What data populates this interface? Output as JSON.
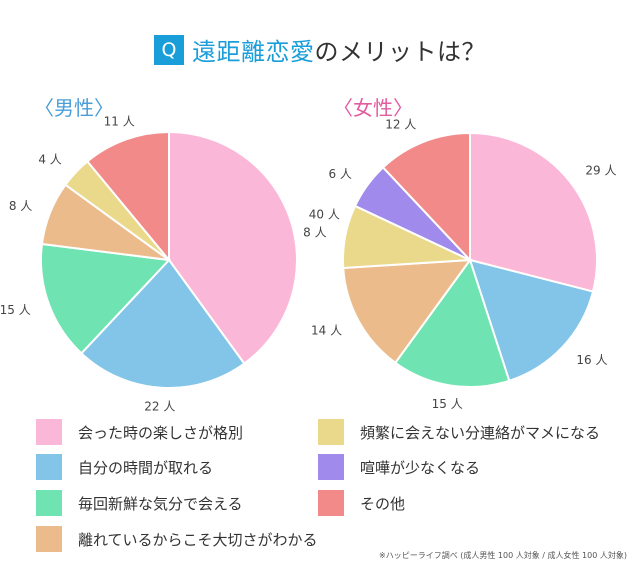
{
  "header": {
    "badge": "Q",
    "title_accent": "遠距離恋愛",
    "title_rest": "のメリットは？"
  },
  "groups": {
    "male_label": "〈男性〉",
    "female_label": "〈女性〉"
  },
  "colors": {
    "pink": "#fbb7d8",
    "blue": "#82c5e8",
    "green": "#6fe3b1",
    "orange": "#ecbb8c",
    "yellow": "#ebd98b",
    "purple": "#a08aec",
    "red": "#f28a8a"
  },
  "legend": [
    {
      "label": "会った時の楽しさが格別",
      "color": "#fbb7d8"
    },
    {
      "label": "自分の時間が取れる",
      "color": "#82c5e8"
    },
    {
      "label": "毎回新鮮な気分で会える",
      "color": "#6fe3b1"
    },
    {
      "label": "離れているからこそ大切さがわかる",
      "color": "#ecbb8c"
    },
    {
      "label": "頻繁に会えない分連絡がマメになる",
      "color": "#ebd98b"
    },
    {
      "label": "喧嘩が少なくなる",
      "color": "#a08aec"
    },
    {
      "label": "その他",
      "color": "#f28a8a"
    }
  ],
  "chart_data": [
    {
      "type": "pie",
      "title": "〈男性〉",
      "unit": "人",
      "slices": [
        {
          "category": "会った時の楽しさが格別",
          "value": 40,
          "label": "40 人"
        },
        {
          "category": "自分の時間が取れる",
          "value": 22,
          "label": "22 人"
        },
        {
          "category": "毎回新鮮な気分で会える",
          "value": 15,
          "label": "15 人"
        },
        {
          "category": "離れているからこそ大切さがわかる",
          "value": 8,
          "label": "8 人"
        },
        {
          "category": "頻繁に会えない分連絡がマメになる",
          "value": 4,
          "label": "4 人"
        },
        {
          "category": "その他",
          "value": 11,
          "label": "11 人"
        }
      ]
    },
    {
      "type": "pie",
      "title": "〈女性〉",
      "unit": "人",
      "slices": [
        {
          "category": "会った時の楽しさが格別",
          "value": 29,
          "label": "29 人"
        },
        {
          "category": "自分の時間が取れる",
          "value": 16,
          "label": "16 人"
        },
        {
          "category": "毎回新鮮な気分で会える",
          "value": 15,
          "label": "15 人"
        },
        {
          "category": "離れているからこそ大切さがわかる",
          "value": 14,
          "label": "14 人"
        },
        {
          "category": "頻繁に会えない分連絡がマメになる",
          "value": 8,
          "label": "8 人"
        },
        {
          "category": "喧嘩が少なくなる",
          "value": 6,
          "label": "6 人"
        },
        {
          "category": "その他",
          "value": 12,
          "label": "12 人"
        }
      ]
    }
  ],
  "source": "※ハッピーライフ調べ (成人男性 100 人対象 / 成人女性 100 人対象)"
}
